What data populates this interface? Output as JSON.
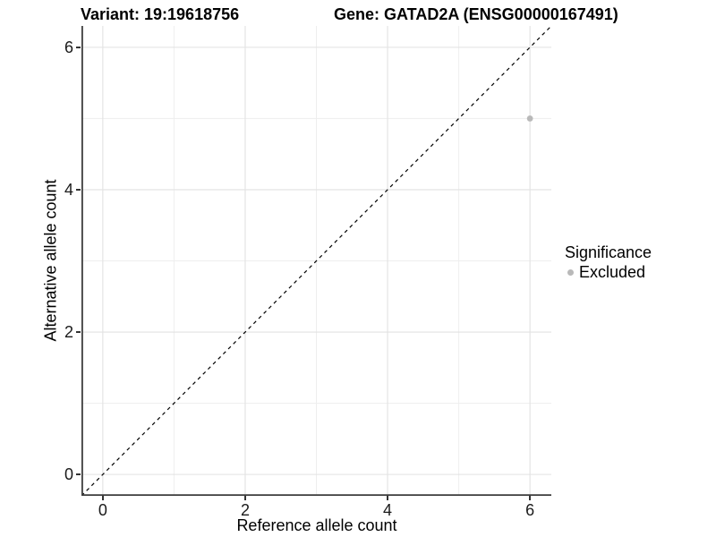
{
  "chart_data": {
    "type": "scatter",
    "title_left": "Variant: 19:19618756",
    "title_right": "Gene: GATAD2A (ENSG00000167491)",
    "xlabel": "Reference allele count",
    "ylabel": "Alternative allele count",
    "xlim": [
      -0.3,
      6.3
    ],
    "ylim": [
      -0.3,
      6.3
    ],
    "x_ticks": [
      0,
      2,
      4,
      6
    ],
    "y_ticks": [
      0,
      2,
      4,
      6
    ],
    "x_minor_ticks": [
      1,
      3,
      5
    ],
    "y_minor_ticks": [
      1,
      3,
      5
    ],
    "grid": "major and minor, light gray, on white background",
    "reference_line": {
      "kind": "identity y=x",
      "slope": 1,
      "intercept": 0,
      "style": "dashed",
      "color": "#000000"
    },
    "series": [
      {
        "name": "Excluded",
        "color": "#b9b9b9",
        "points": [
          {
            "x": 6,
            "y": 5
          }
        ]
      }
    ],
    "legend": {
      "title": "Significance",
      "position": "right",
      "entries": [
        {
          "label": "Excluded",
          "color": "#b9b9b9"
        }
      ]
    }
  },
  "colors": {
    "background": "#ffffff",
    "grid_major": "#e2e2e2",
    "grid_minor": "#eeeeee",
    "axis_line": "#3d3d3d",
    "tick_mark": "#333333",
    "tick_text": "#1a1a1a",
    "point": "#b9b9b9",
    "reference_line": "#000000"
  }
}
